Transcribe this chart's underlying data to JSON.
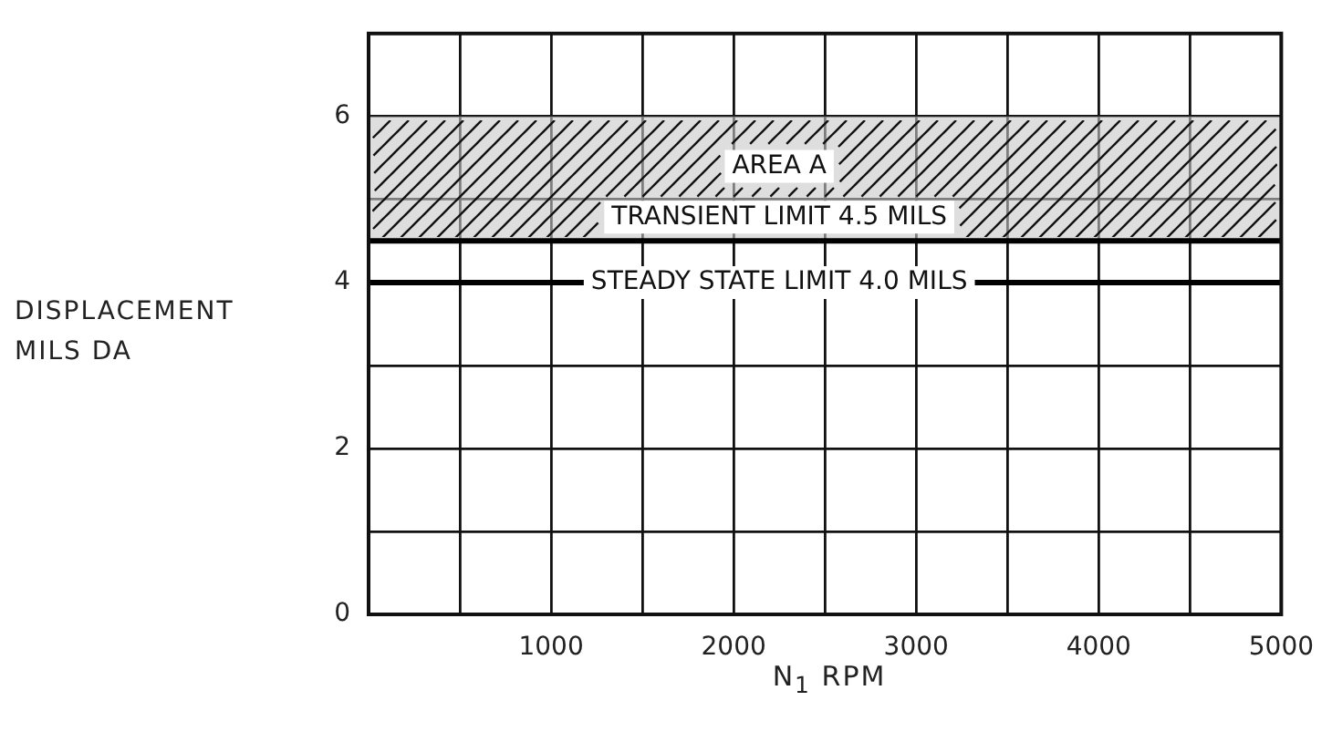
{
  "chart_data": {
    "type": "line",
    "xlabel": "N$_{1}$ RPM",
    "ylabel": "DISPLACEMENT MILS DA",
    "xlim": [
      0,
      5000
    ],
    "xticks": [
      {
        "value": 0,
        "label": null
      },
      {
        "value": 500,
        "label": null
      },
      1000,
      {
        "value": 1500,
        "label": null
      },
      2000,
      {
        "value": 2500,
        "label": null
      },
      3000,
      {
        "value": 3500,
        "label": null
      },
      4000,
      {
        "value": 4500,
        "label": null
      },
      5000
    ],
    "ylim": [
      0,
      7
    ],
    "yticks": [
      0,
      {
        "value": 1,
        "label": null
      },
      2,
      {
        "value": 3,
        "label": null
      },
      4,
      {
        "value": 5,
        "label": null
      },
      6,
      {
        "value": 7,
        "label": null
      }
    ],
    "grid": true,
    "bands": [
      {
        "axis": "y",
        "from": 4.5,
        "to": 6,
        "label": "AREA A",
        "color": "#c8c8c8"
      }
    ],
    "ref_lines": [
      {
        "axis": "y",
        "value": 4.5,
        "label": "TRANSIENT LIMIT 4.5 MILS",
        "color": "#000000"
      },
      {
        "axis": "y",
        "value": 4,
        "label": "STEADY STATE LIMIT 4.0 MILS",
        "color": "#000000"
      }
    ]
  }
}
